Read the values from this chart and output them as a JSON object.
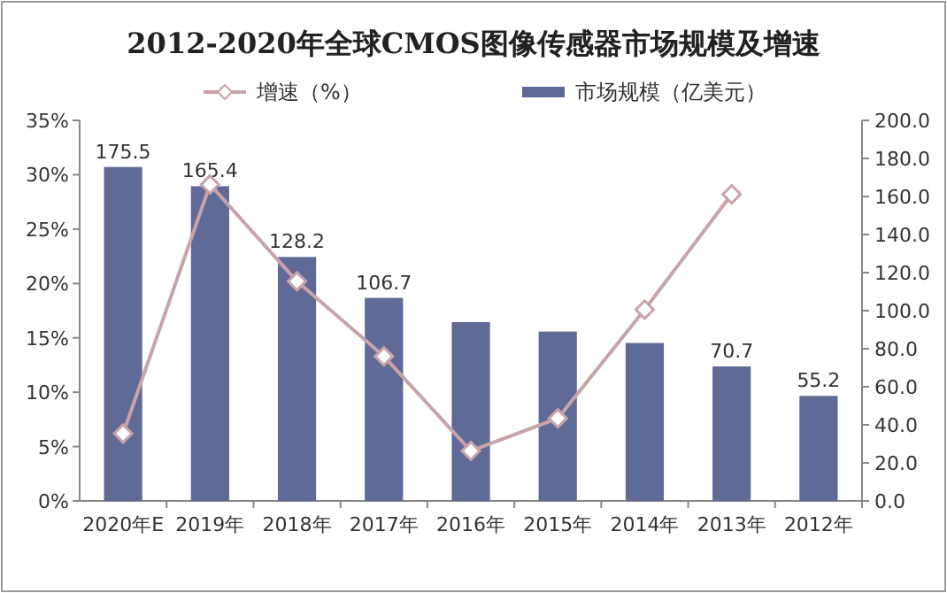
{
  "chart_data": {
    "type": "bar",
    "title": "2012-2020年全球CMOS图像传感器市场规模及增速",
    "categories": [
      "2020年E",
      "2019年",
      "2018年",
      "2017年",
      "2016年",
      "2015年",
      "2014年",
      "2013年",
      "2012年"
    ],
    "series": [
      {
        "name": "增速（%）",
        "type": "line",
        "color": "#c9a3a9",
        "marker": "diamond",
        "line_style": "solid",
        "values": [
          6.2,
          29.1,
          20.2,
          13.3,
          4.6,
          7.6,
          17.6,
          28.2,
          null
        ]
      },
      {
        "name": "市场规模（亿美元）",
        "axis": "y2",
        "color": "#5f6b96",
        "values": [
          175.5,
          165.4,
          128.2,
          106.7,
          94,
          89,
          83,
          70.7,
          55.2
        ],
        "value_labels": [
          "175.5",
          "165.4",
          "128.2",
          "106.7",
          null,
          null,
          null,
          "70.7",
          "55.2"
        ]
      }
    ],
    "ylim": [
      0,
      35
    ],
    "yticks": [
      {
        "value": 0,
        "label": "0%"
      },
      {
        "value": 5,
        "label": "5%"
      },
      {
        "value": 10,
        "label": "10%"
      },
      {
        "value": 15,
        "label": "15%"
      },
      {
        "value": 20,
        "label": "20%"
      },
      {
        "value": 25,
        "label": "25%"
      },
      {
        "value": 30,
        "label": "30%"
      },
      {
        "value": 35,
        "label": "35%"
      }
    ],
    "y2lim": [
      0,
      200
    ],
    "y2ticks": [
      {
        "value": 0,
        "label": "0.0"
      },
      {
        "value": 20,
        "label": "20.0"
      },
      {
        "value": 40,
        "label": "40.0"
      },
      {
        "value": 60,
        "label": "60.0"
      },
      {
        "value": 80,
        "label": "80.0"
      },
      {
        "value": 100,
        "label": "100.0"
      },
      {
        "value": 120,
        "label": "120.0"
      },
      {
        "value": 140,
        "label": "140.0"
      },
      {
        "value": 160,
        "label": "160.0"
      },
      {
        "value": 180,
        "label": "180.0"
      },
      {
        "value": 200,
        "label": "200.0"
      }
    ],
    "grid": false,
    "legend": "top"
  }
}
